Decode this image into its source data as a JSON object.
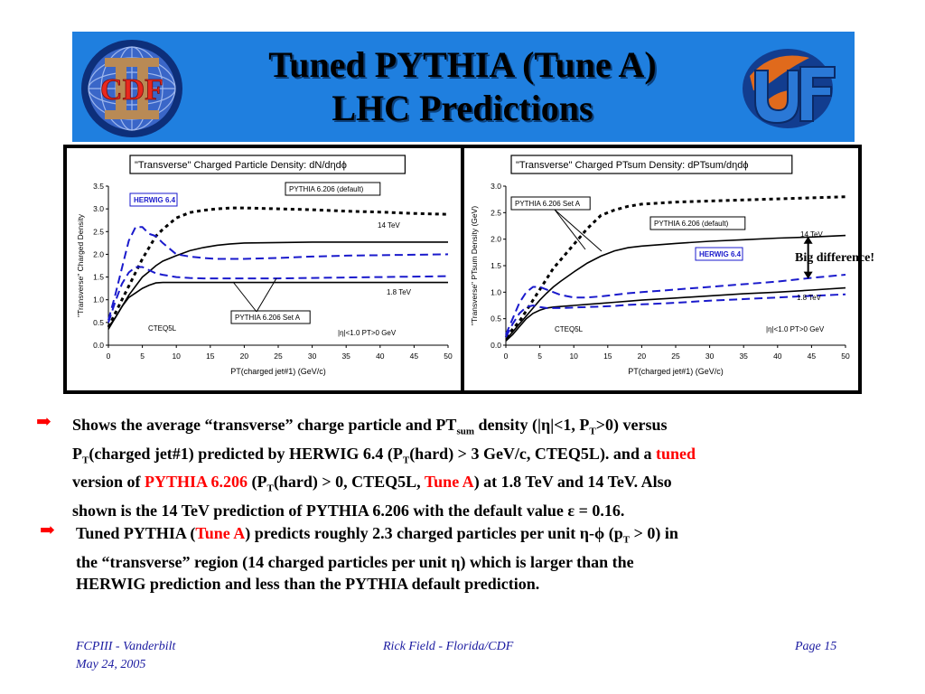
{
  "slide": {
    "title_line1": "Tuned PYTHIA (Tune A)",
    "title_line2": "LHC Predictions",
    "colors": {
      "banner": "#1f7fdf",
      "accent": "#ff0000",
      "footer_text": "#1a1aa0"
    },
    "logos": {
      "left": "cdf-logo",
      "right": "uf-logo",
      "left_text": "CDF"
    }
  },
  "annotation": {
    "big_difference": "Big difference!"
  },
  "charts": {
    "left": {
      "title": "\"Transverse\" Charged Particle Density: dN/dηdϕ",
      "ylabel": "\"Transverse\" Charged Density",
      "xlabel": "PT(charged jet#1)  (GeV/c)",
      "x_ticks": [
        "0",
        "5",
        "10",
        "15",
        "20",
        "25",
        "30",
        "35",
        "40",
        "45",
        "50"
      ],
      "y_ticks": [
        "0.0",
        "0.5",
        "1.0",
        "1.5",
        "2.0",
        "2.5",
        "3.0",
        "3.5"
      ],
      "labels": {
        "herwig": "HERWIG 6.4",
        "pythia_default": "PYTHIA 6.206 (default)",
        "e14": "14 TeV",
        "e18": "1.8 TeV",
        "pythia_a": "PYTHIA 6.206 Set A",
        "cteq": "CTEQ5L",
        "cuts": "|η|<1.0 PT>0 GeV"
      }
    },
    "right": {
      "title": "\"Transverse\" Charged PTsum Density: dPTsum/dηdϕ",
      "ylabel": "\"Transverse\" PTsum Density (GeV)",
      "xlabel": "PT(charged jet#1)  (GeV/c)",
      "x_ticks": [
        "0",
        "5",
        "10",
        "15",
        "20",
        "25",
        "30",
        "35",
        "40",
        "45",
        "50"
      ],
      "y_ticks": [
        "0.0",
        "0.5",
        "1.0",
        "1.5",
        "2.0",
        "2.5",
        "3.0"
      ],
      "labels": {
        "herwig": "HERWIG 6.4",
        "pythia_default": "PYTHIA 6.206 (default)",
        "e14": "14 TeV",
        "e18": "1.8 TeV",
        "pythia_a": "PYTHIA 6.206 Set A",
        "cteq": "CTEQ5L",
        "cuts": "|η|<1.0 PT>0 GeV"
      }
    }
  },
  "chart_data": [
    {
      "type": "line",
      "title": "\"Transverse\" Charged Particle Density: dN/dηdϕ",
      "xlabel": "PT(charged jet#1)  (GeV/c)",
      "ylabel": "\"Transverse\" Charged Density",
      "xlim": [
        0,
        50
      ],
      "ylim": [
        0,
        3.5
      ],
      "x": [
        0,
        1,
        2,
        3,
        4,
        5,
        6,
        7,
        8,
        10,
        12,
        14,
        16,
        18,
        20,
        25,
        30,
        35,
        40,
        45,
        50
      ],
      "series": [
        {
          "name": "PYTHIA 6.206 (default)",
          "style": "dotted",
          "color": "#000000",
          "values": [
            0.4,
            0.7,
            1.0,
            1.3,
            1.6,
            1.9,
            2.15,
            2.4,
            2.55,
            2.8,
            2.92,
            2.97,
            3.0,
            3.02,
            3.02,
            3.0,
            2.98,
            2.95,
            2.93,
            2.9,
            2.88
          ]
        },
        {
          "name": "PYTHIA 6.206 Set A",
          "style": "solid",
          "color": "#000000",
          "values": [
            0.35,
            0.6,
            0.85,
            1.1,
            1.3,
            1.5,
            1.62,
            1.75,
            1.85,
            1.97,
            2.08,
            2.15,
            2.2,
            2.23,
            2.25,
            2.26,
            2.27,
            2.27,
            2.27,
            2.27,
            2.27
          ]
        },
        {
          "name": "HERWIG 6.4",
          "style": "dashed",
          "color": "#1a1acc",
          "values": [
            0.55,
            1.1,
            1.7,
            2.3,
            2.6,
            2.6,
            2.45,
            2.4,
            2.25,
            2.0,
            1.95,
            1.92,
            1.9,
            1.9,
            1.9,
            1.92,
            1.95,
            1.97,
            1.98,
            1.99,
            2.0
          ]
        },
        {
          "name": "1.8 TeV PYTHIA Set A",
          "style": "solid",
          "color": "#000000",
          "values": [
            0.4,
            0.6,
            0.85,
            1.05,
            1.15,
            1.25,
            1.32,
            1.37,
            1.38,
            1.38,
            1.38,
            1.38,
            1.38,
            1.38,
            1.38,
            1.38,
            1.38,
            1.38,
            1.38,
            1.38,
            1.38
          ]
        },
        {
          "name": "1.8 TeV HERWIG",
          "style": "dashed",
          "color": "#1a1acc",
          "values": [
            0.5,
            0.95,
            1.35,
            1.6,
            1.72,
            1.72,
            1.65,
            1.58,
            1.55,
            1.5,
            1.48,
            1.47,
            1.47,
            1.47,
            1.47,
            1.47,
            1.48,
            1.49,
            1.5,
            1.51,
            1.52
          ]
        }
      ]
    },
    {
      "type": "line",
      "title": "\"Transverse\" Charged PTsum Density: dPTsum/dηdϕ",
      "xlabel": "PT(charged jet#1)  (GeV/c)",
      "ylabel": "\"Transverse\" PTsum Density (GeV)",
      "xlim": [
        0,
        50
      ],
      "ylim": [
        0,
        3.0
      ],
      "x": [
        0,
        1,
        2,
        3,
        4,
        5,
        6,
        7,
        8,
        10,
        12,
        14,
        16,
        18,
        20,
        25,
        30,
        35,
        40,
        45,
        50
      ],
      "series": [
        {
          "name": "PYTHIA 6.206 (default)",
          "style": "dotted",
          "color": "#000000",
          "values": [
            0.15,
            0.3,
            0.45,
            0.65,
            0.85,
            1.05,
            1.25,
            1.45,
            1.6,
            1.9,
            2.2,
            2.45,
            2.55,
            2.62,
            2.66,
            2.7,
            2.72,
            2.74,
            2.76,
            2.78,
            2.8
          ]
        },
        {
          "name": "PYTHIA 6.206 Set A",
          "style": "solid",
          "color": "#000000",
          "values": [
            0.1,
            0.25,
            0.4,
            0.55,
            0.7,
            0.85,
            0.98,
            1.1,
            1.2,
            1.38,
            1.55,
            1.68,
            1.78,
            1.84,
            1.87,
            1.92,
            1.96,
            1.99,
            2.02,
            2.04,
            2.07
          ]
        },
        {
          "name": "HERWIG 6.4",
          "style": "dashed",
          "color": "#1a1acc",
          "values": [
            0.2,
            0.5,
            0.8,
            1.0,
            1.1,
            1.1,
            1.05,
            1.0,
            0.95,
            0.9,
            0.9,
            0.92,
            0.95,
            0.98,
            1.0,
            1.05,
            1.1,
            1.15,
            1.2,
            1.27,
            1.33
          ]
        },
        {
          "name": "1.8 TeV PYTHIA Set A",
          "style": "solid",
          "color": "#000000",
          "values": [
            0.08,
            0.2,
            0.35,
            0.5,
            0.6,
            0.66,
            0.7,
            0.72,
            0.73,
            0.75,
            0.77,
            0.79,
            0.81,
            0.83,
            0.85,
            0.89,
            0.93,
            0.97,
            1.0,
            1.04,
            1.08
          ]
        },
        {
          "name": "1.8 TeV HERWIG",
          "style": "dashed",
          "color": "#1a1acc",
          "values": [
            0.15,
            0.4,
            0.6,
            0.72,
            0.75,
            0.72,
            0.7,
            0.7,
            0.7,
            0.71,
            0.72,
            0.73,
            0.74,
            0.76,
            0.77,
            0.8,
            0.84,
            0.87,
            0.9,
            0.93,
            0.96
          ]
        }
      ]
    }
  ],
  "bullets": {
    "b1": {
      "l1a": "Shows the average “transverse” charge particle and PT",
      "l1sub": "sum",
      "l1b": " density (|η|<1, P",
      "l1sub2": "T",
      "l1c": ">0) versus",
      "l2a": "P",
      "l2sub": "T",
      "l2b": "(charged jet#1) predicted by HERWIG 6.4 (P",
      "l2sub2": "T",
      "l2c": "(hard) > 3 GeV/c, CTEQ5L). and a ",
      "l2red": "tuned",
      "l3a": "version of ",
      "l3red": "PYTHIA 6.206",
      "l3b": "  (P",
      "l3sub": "T",
      "l3c": "(hard) > 0, CTEQ5L, ",
      "l3red2": "Tune A",
      "l3d": ") at 1.8 TeV and 14 TeV.  Also",
      "l4": "shown is the 14 TeV prediction of PYTHIA 6.206 with the default value ε = 0.16."
    },
    "b2": {
      "l1a": "Tuned PYTHIA (",
      "l1red": "Tune A",
      "l1b": ") predicts roughly 2.3 charged particles per unit η-ϕ (p",
      "l1sub": "T",
      "l1c": " > 0) in",
      "l2": "the “transverse” region (14 charged particles per unit η) which is larger than the",
      "l3": "HERWIG prediction and less than the PYTHIA default prediction."
    }
  },
  "footer": {
    "left1": "FCPIII - Vanderbilt",
    "left2": "May 24, 2005",
    "center": "Rick Field - Florida/CDF",
    "right": "Page 15"
  }
}
